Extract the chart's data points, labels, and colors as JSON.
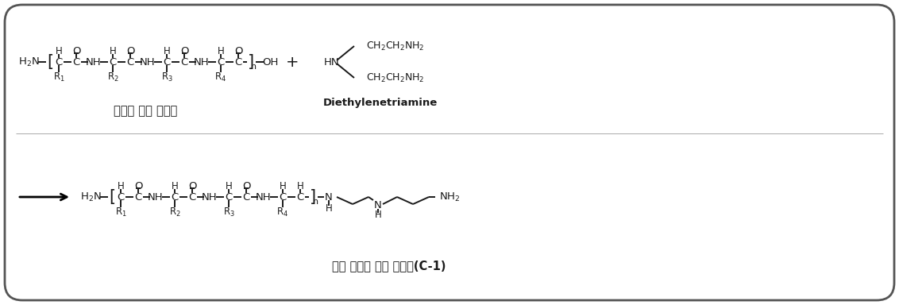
{
  "bg_color": "#ffffff",
  "text_color": "#1a1a1a",
  "label1": "단백질 가수 분해물",
  "label2": "Diethylenetriamine",
  "label3": "변성 단백질 가수 분해물(C-1)",
  "fig_width": 11.32,
  "fig_height": 3.84,
  "dpi": 100
}
